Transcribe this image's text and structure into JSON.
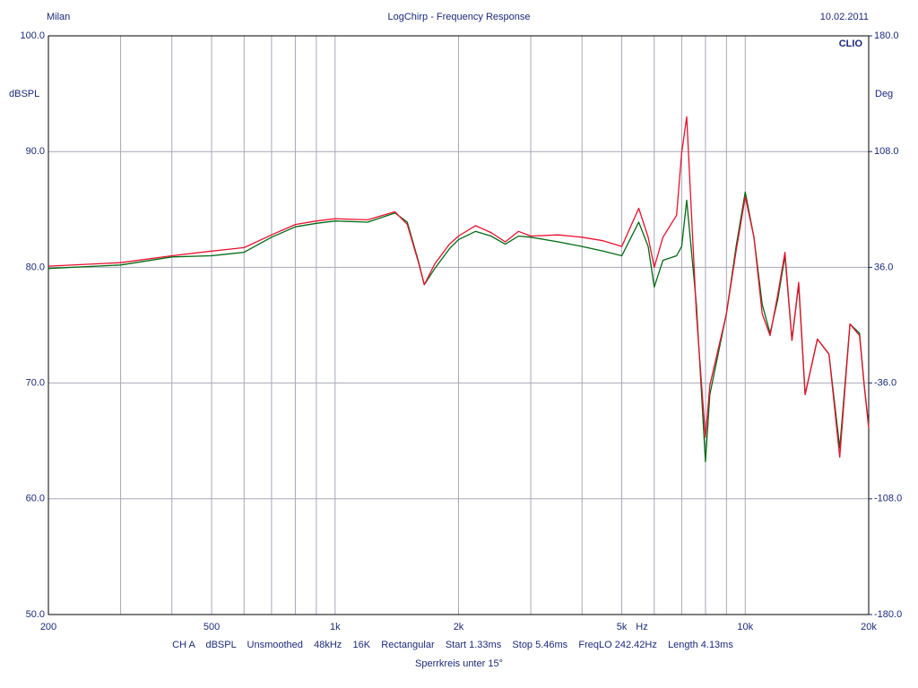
{
  "chart_data": {
    "type": "line",
    "title": "LogChirp - Frequency Response",
    "left_header": "Milan",
    "date": "10.02.2011",
    "brand": "CLIO",
    "y_label": "dBSPL",
    "y2_label": "Deg",
    "x_unit": "Hz",
    "settings": "CH A    dBSPL    Unsmoothed    48kHz    16K    Rectangular    Start 1.33ms    Stop 5.46ms    FreqLO 242.42Hz    Length 4.13ms",
    "note": "Sperrkreis unter 15°",
    "log_x": true,
    "grid": true,
    "xlim": [
      200,
      20000
    ],
    "xticks": [
      200,
      500,
      {
        "value": 1000,
        "label": "1k"
      },
      {
        "value": 2000,
        "label": "2k"
      },
      {
        "value": 5000,
        "label": "5k"
      },
      {
        "value": 10000,
        "label": "10k"
      },
      {
        "value": 20000,
        "label": "20k"
      }
    ],
    "xminorticks": [
      300,
      400,
      600,
      700,
      800,
      900,
      3000,
      4000,
      6000,
      7000,
      8000,
      9000
    ],
    "ylim": [
      50,
      100
    ],
    "yticks": [
      {
        "value": 50,
        "label": "50.0"
      },
      {
        "value": 60,
        "label": "60.0"
      },
      {
        "value": 70,
        "label": "70.0"
      },
      {
        "value": 80,
        "label": "80.0"
      },
      {
        "value": 90,
        "label": "90.0"
      },
      {
        "value": 100,
        "label": "100.0"
      }
    ],
    "y2lim": [
      -180,
      180
    ],
    "y2ticks": [
      {
        "value": -180,
        "label": "-180.0"
      },
      {
        "value": -108,
        "label": "-108.0"
      },
      {
        "value": -36,
        "label": "-36.0"
      },
      {
        "value": 36,
        "label": "36.0"
      },
      {
        "value": 108,
        "label": "108.0"
      },
      {
        "value": 180,
        "label": "180.0"
      }
    ],
    "x": [
      200,
      300,
      400,
      500,
      600,
      700,
      800,
      900,
      1000,
      1200,
      1400,
      1500,
      1600,
      1650,
      1750,
      1900,
      2000,
      2200,
      2400,
      2600,
      2800,
      3000,
      3500,
      4000,
      4500,
      5000,
      5500,
      5800,
      6000,
      6300,
      6800,
      7000,
      7200,
      7600,
      8000,
      8200,
      9000,
      9500,
      10000,
      10500,
      11000,
      11500,
      12000,
      12500,
      13000,
      13500,
      14000,
      15000,
      16000,
      17000,
      18000,
      19000,
      19500,
      20000
    ],
    "series": [
      {
        "color": "#006a12",
        "values": [
          79.9,
          80.2,
          80.9,
          81.0,
          81.3,
          82.6,
          83.5,
          83.8,
          84.0,
          83.9,
          84.7,
          83.9,
          80.4,
          78.5,
          79.9,
          81.6,
          82.4,
          83.1,
          82.7,
          82.0,
          82.7,
          82.6,
          82.2,
          81.8,
          81.4,
          81.0,
          83.9,
          81.8,
          78.3,
          80.6,
          81.0,
          81.8,
          85.8,
          76.8,
          63.2,
          69.0,
          76.0,
          81.8,
          86.5,
          82.6,
          76.8,
          74.3,
          77.2,
          81.0,
          73.7,
          78.5,
          69.0,
          73.8,
          72.5,
          64.4,
          75.1,
          74.3,
          69.8,
          66.3
        ]
      },
      {
        "color": "#e8102e",
        "values": [
          80.1,
          80.4,
          81.0,
          81.4,
          81.7,
          82.8,
          83.7,
          84.0,
          84.2,
          84.1,
          84.8,
          83.7,
          80.3,
          78.5,
          80.3,
          82.0,
          82.7,
          83.6,
          83.0,
          82.2,
          83.1,
          82.7,
          82.8,
          82.6,
          82.3,
          81.8,
          85.1,
          82.6,
          80.0,
          82.6,
          84.5,
          89.9,
          93.0,
          76.0,
          65.3,
          69.8,
          76.0,
          81.4,
          86.1,
          82.6,
          76.0,
          74.1,
          77.6,
          81.3,
          73.7,
          78.7,
          69.0,
          73.8,
          72.5,
          63.6,
          75.1,
          74.1,
          69.8,
          66.1
        ]
      }
    ]
  }
}
